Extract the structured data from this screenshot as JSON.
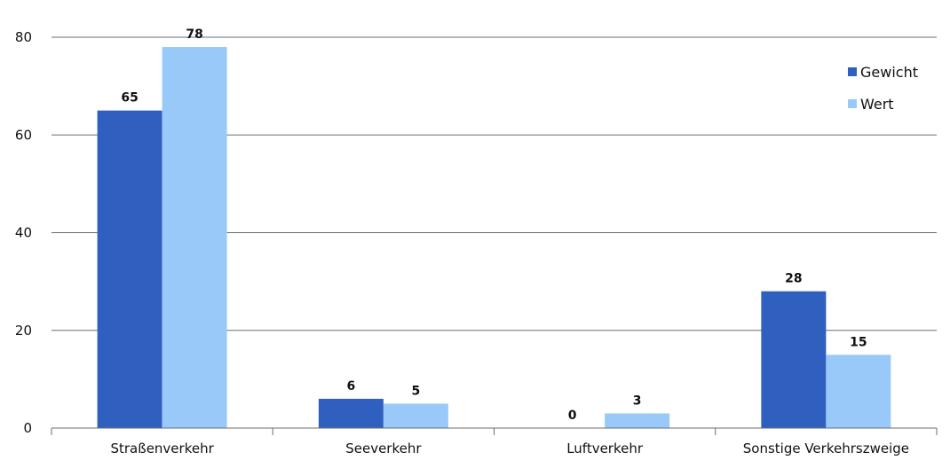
{
  "chart_data": {
    "type": "bar",
    "categories": [
      "Straßenverkehr",
      "Seeverkehr",
      "Luftverkehr",
      "Sonstige Verkehrszweige"
    ],
    "series": [
      {
        "name": "Gewicht",
        "color": "#2f5fbf",
        "values": [
          65,
          6,
          0,
          28
        ]
      },
      {
        "name": "Wert",
        "color": "#99c9f8",
        "values": [
          78,
          5,
          3,
          15
        ]
      }
    ],
    "data_labels": [
      [
        "65",
        "6",
        "0",
        "28"
      ],
      [
        "78",
        "5",
        "3",
        "15"
      ]
    ],
    "title": "",
    "xlabel": "",
    "ylabel": "",
    "ylim": [
      0,
      80
    ],
    "yticks": [
      "0",
      "20",
      "40",
      "60",
      "80"
    ],
    "grid": true,
    "legend_position": "top-right"
  }
}
